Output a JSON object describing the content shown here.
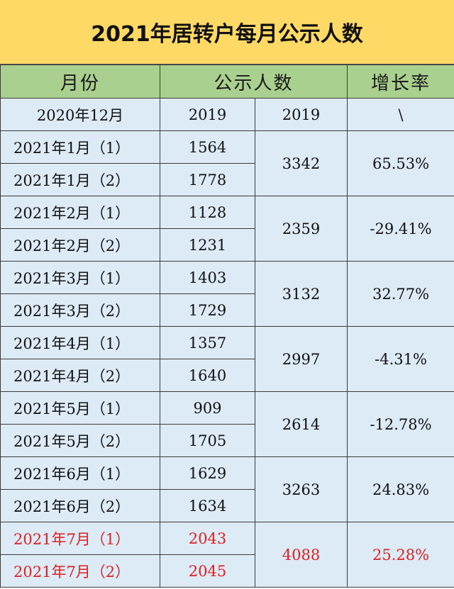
{
  "title": "2021年居转户每月公示人数",
  "header": {
    "month": "月份",
    "count": "公示人数",
    "growth": "增长率"
  },
  "first_row": {
    "month": "2020年12月",
    "count": "2019",
    "total": "2019",
    "growth": "\\"
  },
  "months": [
    {
      "rows": [
        {
          "month": "2021年1月（1）",
          "count": "1564"
        },
        {
          "month": "2021年1月（2）",
          "count": "1778"
        }
      ],
      "total": "3342",
      "growth": "65.53%"
    },
    {
      "rows": [
        {
          "month": "2021年2月（1）",
          "count": "1128"
        },
        {
          "month": "2021年2月（2）",
          "count": "1231"
        }
      ],
      "total": "2359",
      "growth": "-29.41%"
    },
    {
      "rows": [
        {
          "month": "2021年3月（1）",
          "count": "1403"
        },
        {
          "month": "2021年3月（2）",
          "count": "1729"
        }
      ],
      "total": "3132",
      "growth": "32.77%"
    },
    {
      "rows": [
        {
          "month": "2021年4月（1）",
          "count": "1357"
        },
        {
          "month": "2021年4月（2）",
          "count": "1640"
        }
      ],
      "total": "2997",
      "growth": "-4.31%"
    },
    {
      "rows": [
        {
          "month": "2021年5月（1）",
          "count": "909"
        },
        {
          "month": "2021年5月（2）",
          "count": "1705"
        }
      ],
      "total": "2614",
      "growth": "-12.78%"
    },
    {
      "rows": [
        {
          "month": "2021年6月（1）",
          "count": "1629"
        },
        {
          "month": "2021年6月（2）",
          "count": "1634"
        }
      ],
      "total": "3263",
      "growth": "24.83%"
    },
    {
      "rows": [
        {
          "month": "2021年7月（1）",
          "count": "2043"
        },
        {
          "month": "2021年7月（2）",
          "count": "2045"
        }
      ],
      "total": "4088",
      "growth": "25.28%",
      "highlight_color": "#e02020"
    }
  ],
  "colors": {
    "title_bg": "#ffd966",
    "header_bg": "#a9d08e",
    "cell_bg": "#ddebf7",
    "highlight": "#e02020"
  }
}
